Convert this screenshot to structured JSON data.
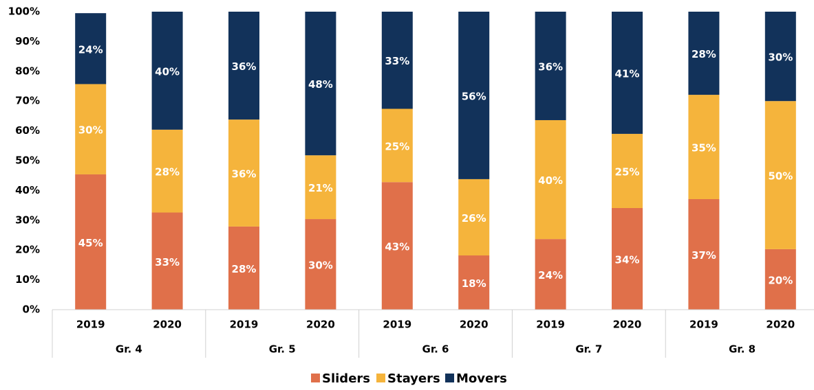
{
  "chart_data": {
    "type": "stacked_bar",
    "categories": [
      "2019",
      "2020",
      "2019",
      "2020",
      "2019",
      "2020",
      "2019",
      "2020",
      "2019",
      "2020"
    ],
    "groups": [
      "Gr. 4",
      "Gr. 5",
      "Gr. 6",
      "Gr. 7",
      "Gr. 8"
    ],
    "series": [
      {
        "name": "Sliders",
        "color": "#e0704a",
        "values": [
          45.4,
          32.6,
          27.9,
          30.4,
          42.8,
          18.2,
          23.7,
          34.1,
          37.1,
          20.3
        ],
        "value_labels": [
          "45%",
          "33%",
          "28%",
          "30%",
          "43%",
          "18%",
          "24%",
          "34%",
          "37%",
          "20%"
        ]
      },
      {
        "name": "Stayers",
        "color": "#f5b43c",
        "values": [
          30.3,
          27.8,
          35.9,
          21.4,
          24.6,
          25.6,
          39.9,
          24.9,
          35.0,
          49.7
        ],
        "value_labels": [
          "30%",
          "28%",
          "36%",
          "21%",
          "25%",
          "26%",
          "40%",
          "25%",
          "35%",
          "50%"
        ]
      },
      {
        "name": "Movers",
        "color": "#12325a",
        "values": [
          23.8,
          39.6,
          36.2,
          48.2,
          32.6,
          56.2,
          36.4,
          41.0,
          27.9,
          30.0
        ],
        "value_labels": [
          "24%",
          "40%",
          "36%",
          "48%",
          "33%",
          "56%",
          "36%",
          "41%",
          "28%",
          "30%"
        ]
      }
    ],
    "ylim": [
      0,
      100
    ],
    "yticks": [
      {
        "value": 0,
        "label": "0%"
      },
      {
        "value": 10,
        "label": "10%"
      },
      {
        "value": 20,
        "label": "20%"
      },
      {
        "value": 30,
        "label": "30%"
      },
      {
        "value": 40,
        "label": "40%"
      },
      {
        "value": 50,
        "label": "50%"
      },
      {
        "value": 60,
        "label": "60%"
      },
      {
        "value": 70,
        "label": "70%"
      },
      {
        "value": 80,
        "label": "80%"
      },
      {
        "value": 90,
        "label": "90%"
      },
      {
        "value": 100,
        "label": "100%"
      }
    ],
    "legend": "bottom"
  }
}
